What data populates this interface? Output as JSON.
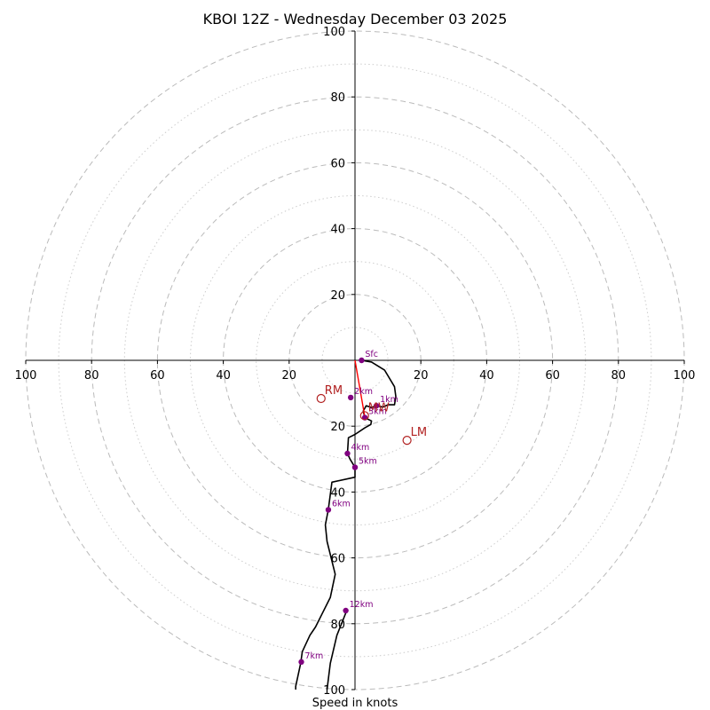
{
  "chart_data": {
    "type": "hodograph",
    "title": "KBOI 12Z - Wednesday December 03 2025",
    "xlabel": "Speed in knots",
    "units": "knots",
    "rings": {
      "major": [
        20,
        40,
        60,
        80,
        100
      ],
      "minor": [
        10,
        30,
        50,
        70,
        90
      ],
      "max": 100
    },
    "tick_labels": {
      "x_neg": [
        "100",
        "80",
        "60",
        "40",
        "20"
      ],
      "x_pos": [
        "20",
        "40",
        "60",
        "80",
        "100"
      ],
      "y_pos": [
        "20",
        "40",
        "60",
        "80",
        "100"
      ],
      "y_neg": [
        "20",
        "40",
        "60",
        "80",
        "100"
      ]
    },
    "trace": [
      [
        2,
        0
      ],
      [
        5,
        -0.5
      ],
      [
        9,
        -3
      ],
      [
        12,
        -8
      ],
      [
        12.4,
        -11
      ],
      [
        12,
        -13.5
      ],
      [
        10,
        -13.5
      ],
      [
        8.5,
        -14.2
      ],
      [
        6.5,
        -13.8
      ],
      [
        5,
        -14.3
      ],
      [
        3.4,
        -13.8
      ],
      [
        2.5,
        -15.4
      ],
      [
        3,
        -17.4
      ],
      [
        5,
        -18.4
      ],
      [
        4.8,
        -19.5
      ],
      [
        3,
        -20.5
      ],
      [
        0,
        -22.5
      ],
      [
        -2,
        -23.5
      ],
      [
        -2.3,
        -28.3
      ],
      [
        -1.5,
        -30
      ],
      [
        0,
        -32.5
      ],
      [
        0,
        -35.5
      ],
      [
        -7,
        -37
      ],
      [
        -8.1,
        -45.4
      ],
      [
        -9,
        -50
      ],
      [
        -8.5,
        -55
      ],
      [
        -6,
        -65
      ],
      [
        -7.5,
        -72
      ],
      [
        -10,
        -77
      ],
      [
        -12,
        -81
      ],
      [
        -13.7,
        -83.5
      ],
      [
        -16,
        -88.5
      ],
      [
        -16.5,
        -92
      ],
      [
        -18,
        -99
      ],
      [
        -18,
        -100
      ]
    ],
    "trace_branch": [
      [
        -2.5,
        -76
      ],
      [
        -5.5,
        -83.5
      ],
      [
        -7.5,
        -92
      ],
      [
        -8.5,
        -100
      ]
    ],
    "markers": [
      {
        "label": "Sfc",
        "u": 2,
        "v": 0
      },
      {
        "label": "1km",
        "u": 6.5,
        "v": -13.8
      },
      {
        "label": "2km",
        "u": -1.3,
        "v": -11.3
      },
      {
        "label": "3km",
        "u": 3,
        "v": -17.4
      },
      {
        "label": "4km",
        "u": -2.3,
        "v": -28.3
      },
      {
        "label": "5km",
        "u": 0,
        "v": -32.5
      },
      {
        "label": "6km",
        "u": -8.1,
        "v": -45.4
      },
      {
        "label": "7km",
        "u": -16.3,
        "v": -91.6
      },
      {
        "label": "12km",
        "u": -2.8,
        "v": -76
      }
    ],
    "storm_motion": [
      {
        "label": "RM",
        "u": -10.3,
        "v": -11.6
      },
      {
        "label": "LM",
        "u": 15.8,
        "v": -24.3
      },
      {
        "label": "MW",
        "u": 2.9,
        "v": -16.8
      }
    ],
    "shear_vector": [
      [
        0,
        0
      ],
      [
        2.9,
        -16.8
      ]
    ],
    "colors": {
      "trace": "#000000",
      "marker": "#800080",
      "storm_motion": "#b22222",
      "shear": "#ff0000",
      "grid": "#bbbbbb"
    }
  }
}
